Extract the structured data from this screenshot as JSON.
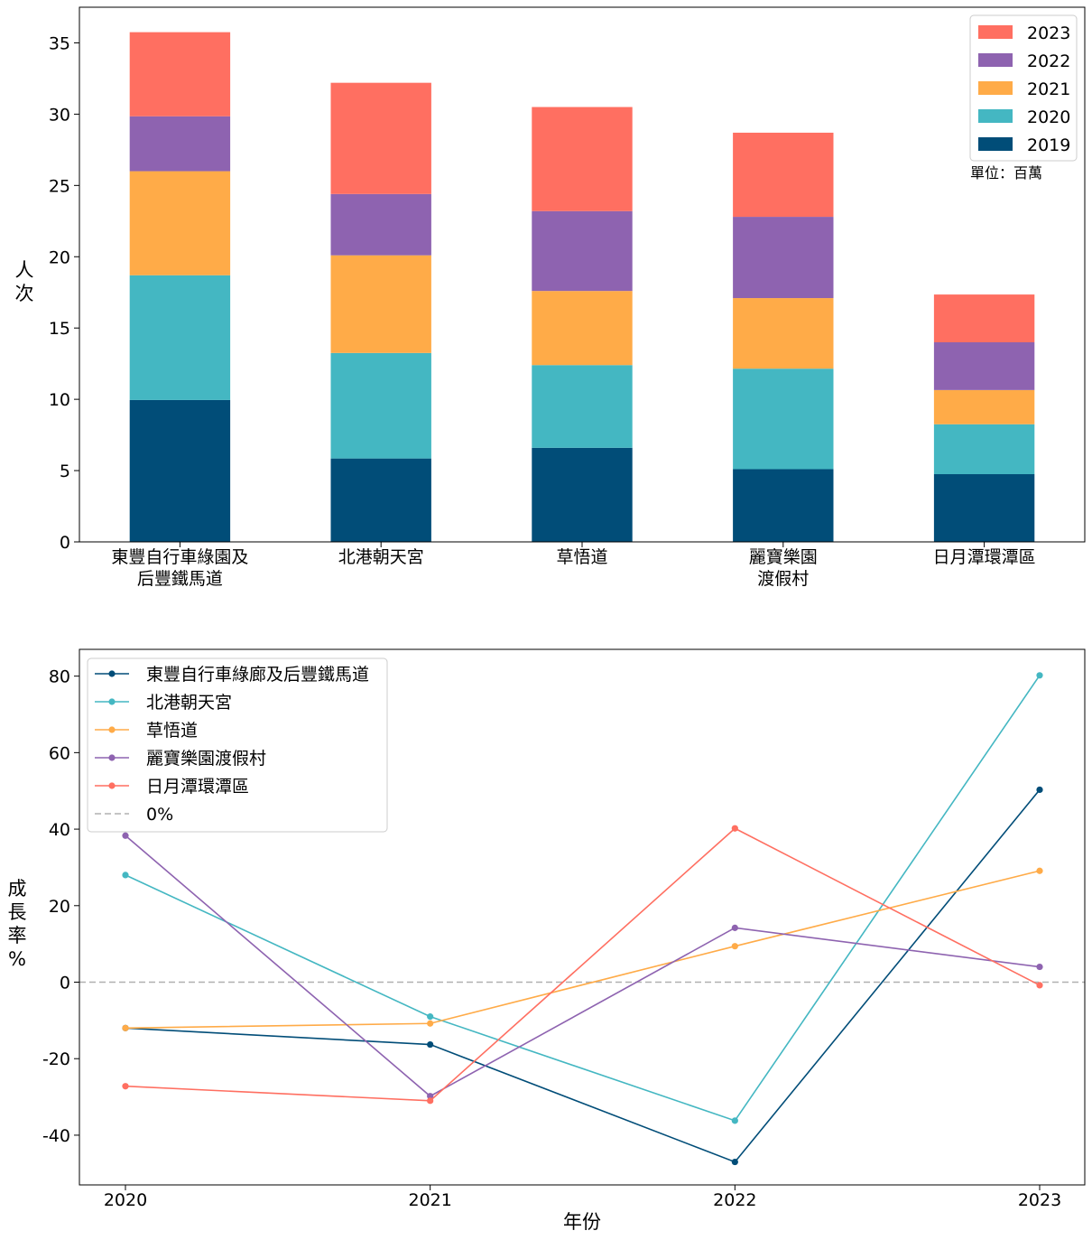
{
  "chart_data": [
    {
      "type": "bar",
      "stacked": true,
      "categories": [
        "東豐自行車綠園及\n后豐鐵馬道",
        "北港朝天宮",
        "草悟道",
        "麗寶樂園\n渡假村",
        "日月潭環潭區"
      ],
      "series": [
        {
          "name": "2019",
          "color": "#014d78",
          "values": [
            9.95,
            5.85,
            6.6,
            5.1,
            4.75
          ]
        },
        {
          "name": "2020",
          "color": "#44b7c2",
          "values": [
            8.75,
            7.4,
            5.8,
            7.05,
            3.5
          ]
        },
        {
          "name": "2021",
          "color": "#ffab48",
          "values": [
            7.3,
            6.85,
            5.2,
            4.95,
            2.4
          ]
        },
        {
          "name": "2022",
          "color": "#8e63b0",
          "values": [
            3.85,
            4.3,
            5.6,
            5.7,
            3.35
          ]
        },
        {
          "name": "2023",
          "color": "#ff6f61",
          "values": [
            5.9,
            7.8,
            7.3,
            5.9,
            3.35
          ]
        }
      ],
      "ylabel": "人\n次",
      "ylim": [
        0,
        37.5
      ],
      "yticks": [
        0,
        5,
        10,
        15,
        20,
        25,
        30,
        35
      ],
      "legend_order": [
        "2023",
        "2022",
        "2021",
        "2020",
        "2019"
      ],
      "legend_position": "top-right",
      "annotation": "單位：百萬"
    },
    {
      "type": "line",
      "x": [
        "2020",
        "2021",
        "2022",
        "2023"
      ],
      "series": [
        {
          "name": "東豐自行車綠廊及后豐鐵馬道",
          "color": "#014d78",
          "values": [
            -12,
            -16.3,
            -47,
            50.3
          ]
        },
        {
          "name": "北港朝天宮",
          "color": "#44b7c2",
          "values": [
            28,
            -9,
            -36.2,
            80.2
          ]
        },
        {
          "name": "草悟道",
          "color": "#ffab48",
          "values": [
            -12,
            -10.8,
            9.4,
            29.1
          ]
        },
        {
          "name": "麗寶樂園渡假村",
          "color": "#8e63b0",
          "values": [
            38.3,
            -29.8,
            14.2,
            4
          ]
        },
        {
          "name": "日月潭環潭區",
          "color": "#ff6f61",
          "values": [
            -27.2,
            -31,
            40.2,
            -0.8
          ]
        }
      ],
      "reference_line": {
        "name": "0%",
        "value": 0,
        "color": "#b0b0b0"
      },
      "xlabel": "年份",
      "ylabel": "成\n長\n率\n%",
      "ylim": [
        -53,
        87
      ],
      "yticks": [
        -40,
        -20,
        0,
        20,
        40,
        60,
        80
      ],
      "legend_position": "top-left"
    }
  ]
}
